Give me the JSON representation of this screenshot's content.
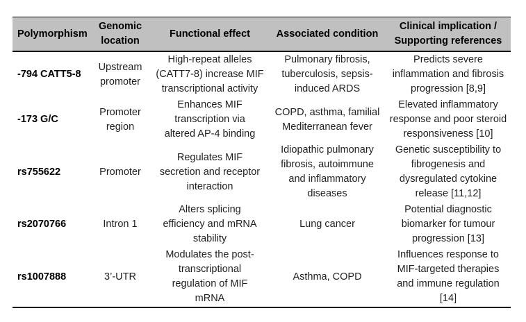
{
  "colors": {
    "header_background": "#c0c0c0",
    "border": "#000000",
    "body_text": "#1f1f1f"
  },
  "table": {
    "headers": {
      "polymorphism": "Polymorphism",
      "location": "Genomic\nlocation",
      "effect": "Functional effect",
      "condition": "Associated condition",
      "implication": "Clinical implication /\nSupporting references"
    },
    "rows": [
      {
        "polymorphism": "-794 CATT5-8",
        "location": "Upstream\npromoter",
        "effect": "High-repeat alleles\n(CATT7-8) increase MIF\ntranscriptional activity",
        "condition": "Pulmonary fibrosis,\ntuberculosis, sepsis-\ninduced ARDS",
        "implication": "Predicts severe\ninflammation and fibrosis\nprogression [8,9]"
      },
      {
        "polymorphism": "-173 G/C",
        "location": "Promoter\nregion",
        "effect": "Enhances MIF\ntranscription via\naltered AP-4 binding",
        "condition": "COPD, asthma, familial\nMediterranean fever",
        "implication": "Elevated inflammatory\nresponse and poor steroid\nresponsiveness [10]"
      },
      {
        "polymorphism": "rs755622",
        "location": "Promoter",
        "effect": "Regulates MIF\nsecretion and receptor\ninteraction",
        "condition": "Idiopathic pulmonary\nfibrosis, autoimmune\nand inflammatory\ndiseases",
        "implication": "Genetic susceptibility to\nfibrogenesis and\ndysregulated cytokine\nrelease [11,12]"
      },
      {
        "polymorphism": "rs2070766",
        "location": "Intron 1",
        "effect": "Alters splicing\nefficiency and mRNA\nstability",
        "condition": "Lung cancer",
        "implication": "Potential diagnostic\nbiomarker for tumour\nprogression [13]"
      },
      {
        "polymorphism": "rs1007888",
        "location": "3’-UTR",
        "effect": "Modulates the post-\ntranscriptional\nregulation of MIF\nmRNA",
        "condition": "Asthma, COPD",
        "implication": "Influences response to\nMIF-targeted therapies\nand immune regulation\n[14]"
      }
    ]
  }
}
